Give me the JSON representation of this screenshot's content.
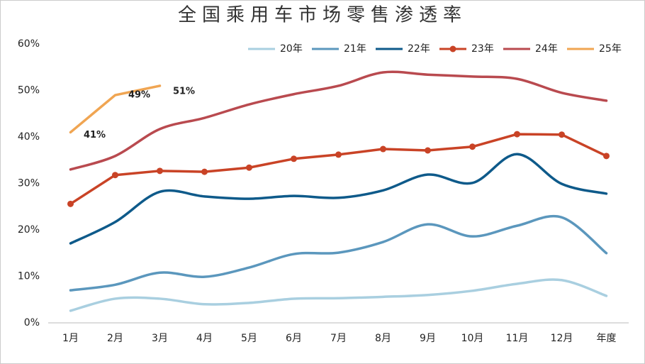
{
  "chart_data": {
    "type": "line",
    "title": "全国乘用车市场零售渗透率",
    "categories": [
      "1月",
      "2月",
      "3月",
      "4月",
      "5月",
      "6月",
      "7月",
      "8月",
      "9月",
      "10月",
      "11月",
      "12月",
      "年度"
    ],
    "series": [
      {
        "name": "20年",
        "color": "#a9cfe0",
        "smooth": true,
        "values": [
          2.6,
          5.2,
          5.2,
          4.0,
          4.3,
          5.2,
          5.3,
          5.6,
          6.0,
          6.9,
          8.4,
          9.2,
          5.8
        ]
      },
      {
        "name": "21年",
        "color": "#5b97bd",
        "smooth": true,
        "values": [
          7.0,
          8.2,
          10.8,
          9.9,
          11.9,
          14.8,
          15.1,
          17.4,
          21.2,
          18.6,
          20.9,
          22.7,
          15.0
        ]
      },
      {
        "name": "22年",
        "color": "#0e5a8a",
        "smooth": true,
        "values": [
          17.1,
          21.7,
          28.2,
          27.2,
          26.7,
          27.3,
          26.9,
          28.5,
          31.9,
          30.1,
          36.3,
          29.9,
          27.8
        ]
      },
      {
        "name": "23年",
        "color": "#c94326",
        "smooth": false,
        "marker": true,
        "values": [
          25.6,
          31.8,
          32.7,
          32.5,
          33.4,
          35.3,
          36.2,
          37.4,
          37.1,
          37.9,
          40.6,
          40.5,
          35.9
        ]
      },
      {
        "name": "24年",
        "color": "#b94a4f",
        "smooth": true,
        "values": [
          33.0,
          35.9,
          41.7,
          44.1,
          47.0,
          49.2,
          51.0,
          53.9,
          53.4,
          53.0,
          52.5,
          49.5,
          47.8
        ]
      },
      {
        "name": "25年",
        "color": "#f0a552",
        "smooth": false,
        "values": [
          41,
          49,
          51,
          null,
          null,
          null,
          null,
          null,
          null,
          null,
          null,
          null,
          null
        ],
        "value_labels": [
          "41%",
          "49%",
          "51%",
          null,
          null,
          null,
          null,
          null,
          null,
          null,
          null,
          null,
          null
        ]
      }
    ],
    "ylim": [
      0,
      60
    ],
    "yticks": [
      {
        "value": 0,
        "label": "0%"
      },
      {
        "value": 10,
        "label": "10%"
      },
      {
        "value": 20,
        "label": "20%"
      },
      {
        "value": 30,
        "label": "30%"
      },
      {
        "value": 40,
        "label": "40%"
      },
      {
        "value": 50,
        "label": "50%"
      },
      {
        "value": 60,
        "label": "60%"
      }
    ],
    "grid": false,
    "legend": "top-right"
  }
}
